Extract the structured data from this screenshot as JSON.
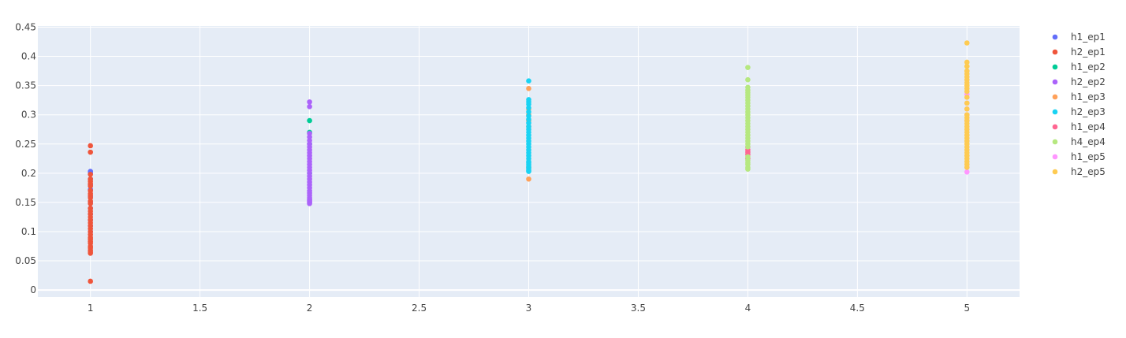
{
  "chart_data": {
    "type": "scatter",
    "title": "",
    "xlabel": "",
    "ylabel": "",
    "xlim": [
      0.76,
      5.24
    ],
    "ylim": [
      -0.012,
      0.452
    ],
    "xticks": [
      1,
      1.5,
      2,
      2.5,
      3,
      3.5,
      4,
      4.5,
      5
    ],
    "xtick_labels": [
      "1",
      "1.5",
      "2",
      "2.5",
      "3",
      "3.5",
      "4",
      "4.5",
      "5"
    ],
    "yticks": [
      0,
      0.05,
      0.1,
      0.15,
      0.2,
      0.25,
      0.3,
      0.35,
      0.4,
      0.45
    ],
    "ytick_labels": [
      "0",
      "0.05",
      "0.1",
      "0.15",
      "0.2",
      "0.25",
      "0.3",
      "0.35",
      "0.4",
      "0.45"
    ],
    "grid": true,
    "legend_position": "right",
    "plot_background": "#E5ECF6",
    "series": [
      {
        "name": "h1_ep1",
        "color": "#636EFA",
        "x": [
          1,
          1,
          1,
          1,
          1,
          1,
          1,
          1,
          1,
          1,
          1,
          1
        ],
        "y": [
          0.203,
          0.2,
          0.19,
          0.18,
          0.172,
          0.16,
          0.15,
          0.14,
          0.13,
          0.12,
          0.11,
          0.1
        ]
      },
      {
        "name": "h2_ep1",
        "color": "#EF553B",
        "x": [
          1,
          1,
          1,
          1,
          1,
          1,
          1,
          1,
          1,
          1,
          1,
          1,
          1,
          1,
          1,
          1,
          1,
          1,
          1,
          1,
          1,
          1,
          1,
          1,
          1,
          1,
          1,
          1,
          1,
          1,
          1,
          1,
          1
        ],
        "y": [
          0.247,
          0.236,
          0.198,
          0.19,
          0.186,
          0.182,
          0.178,
          0.17,
          0.165,
          0.162,
          0.158,
          0.152,
          0.148,
          0.14,
          0.135,
          0.13,
          0.125,
          0.12,
          0.115,
          0.11,
          0.105,
          0.1,
          0.095,
          0.09,
          0.087,
          0.083,
          0.08,
          0.075,
          0.072,
          0.068,
          0.065,
          0.063,
          0.015
        ]
      },
      {
        "name": "h1_ep2",
        "color": "#00CC96",
        "x": [
          2,
          2,
          2,
          2
        ],
        "y": [
          0.29,
          0.27,
          0.25,
          0.2
        ]
      },
      {
        "name": "h2_ep2",
        "color": "#AB63FA",
        "x": [
          2,
          2,
          2,
          2,
          2,
          2,
          2,
          2,
          2,
          2,
          2,
          2,
          2,
          2,
          2,
          2,
          2,
          2,
          2,
          2,
          2,
          2,
          2,
          2,
          2,
          2,
          2,
          2,
          2,
          2
        ],
        "y": [
          0.322,
          0.314,
          0.268,
          0.262,
          0.256,
          0.25,
          0.245,
          0.24,
          0.235,
          0.23,
          0.225,
          0.22,
          0.215,
          0.21,
          0.205,
          0.2,
          0.195,
          0.19,
          0.185,
          0.18,
          0.175,
          0.17,
          0.166,
          0.162,
          0.158,
          0.155,
          0.153,
          0.151,
          0.15,
          0.148
        ]
      },
      {
        "name": "h1_ep3",
        "color": "#FFA15A",
        "x": [
          3,
          3,
          3,
          3,
          3,
          3,
          3
        ],
        "y": [
          0.345,
          0.31,
          0.3,
          0.29,
          0.28,
          0.21,
          0.19
        ]
      },
      {
        "name": "h2_ep3",
        "color": "#19D3F3",
        "x": [
          3,
          3,
          3,
          3,
          3,
          3,
          3,
          3,
          3,
          3,
          3,
          3,
          3,
          3,
          3,
          3,
          3,
          3,
          3,
          3,
          3,
          3,
          3,
          3,
          3,
          3,
          3,
          3,
          3
        ],
        "y": [
          0.358,
          0.326,
          0.322,
          0.318,
          0.312,
          0.305,
          0.298,
          0.292,
          0.286,
          0.28,
          0.275,
          0.27,
          0.265,
          0.26,
          0.255,
          0.25,
          0.245,
          0.24,
          0.235,
          0.23,
          0.225,
          0.22,
          0.218,
          0.215,
          0.212,
          0.21,
          0.208,
          0.205,
          0.203
        ]
      },
      {
        "name": "h1_ep4",
        "color": "#FF6692",
        "x": [
          4,
          4,
          4,
          4,
          4
        ],
        "y": [
          0.245,
          0.24,
          0.236,
          0.232,
          0.225
        ]
      },
      {
        "name": "h4_ep4",
        "color": "#B6E880",
        "x": [
          4,
          4,
          4,
          4,
          4,
          4,
          4,
          4,
          4,
          4,
          4,
          4,
          4,
          4,
          4,
          4,
          4,
          4,
          4,
          4,
          4,
          4,
          4,
          4,
          4,
          4,
          4,
          4,
          4,
          4
        ],
        "y": [
          0.381,
          0.36,
          0.347,
          0.342,
          0.338,
          0.334,
          0.33,
          0.325,
          0.32,
          0.315,
          0.31,
          0.305,
          0.3,
          0.295,
          0.29,
          0.285,
          0.28,
          0.275,
          0.27,
          0.265,
          0.26,
          0.255,
          0.25,
          0.245,
          0.228,
          0.222,
          0.218,
          0.215,
          0.21,
          0.207
        ]
      },
      {
        "name": "h1_ep5",
        "color": "#FF97FF",
        "x": [
          5,
          5,
          5,
          5,
          5,
          5,
          5
        ],
        "y": [
          0.335,
          0.32,
          0.31,
          0.3,
          0.29,
          0.21,
          0.202
        ]
      },
      {
        "name": "h2_ep5",
        "color": "#FECB52",
        "x": [
          5,
          5,
          5,
          5,
          5,
          5,
          5,
          5,
          5,
          5,
          5,
          5,
          5,
          5,
          5,
          5,
          5,
          5,
          5,
          5,
          5,
          5,
          5,
          5,
          5,
          5,
          5,
          5,
          5,
          5,
          5,
          5,
          5
        ],
        "y": [
          0.423,
          0.39,
          0.383,
          0.375,
          0.37,
          0.365,
          0.36,
          0.355,
          0.35,
          0.345,
          0.34,
          0.33,
          0.32,
          0.31,
          0.3,
          0.295,
          0.29,
          0.285,
          0.28,
          0.275,
          0.27,
          0.265,
          0.26,
          0.255,
          0.25,
          0.245,
          0.24,
          0.235,
          0.23,
          0.225,
          0.22,
          0.215,
          0.21
        ]
      }
    ]
  }
}
